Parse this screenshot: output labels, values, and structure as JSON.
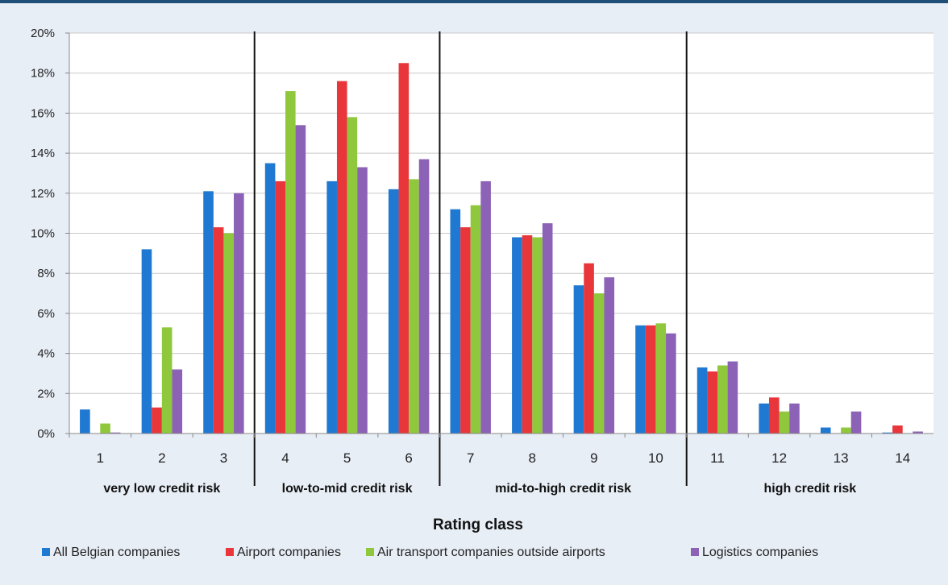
{
  "chart_data": {
    "type": "bar",
    "categories": [
      "1",
      "2",
      "3",
      "4",
      "5",
      "6",
      "7",
      "8",
      "9",
      "10",
      "11",
      "12",
      "13",
      "14"
    ],
    "series": [
      {
        "name": "All Belgian companies",
        "color": "#1f78d1",
        "values": [
          1.2,
          9.2,
          12.1,
          13.5,
          12.6,
          12.2,
          11.2,
          9.8,
          7.4,
          5.4,
          3.3,
          1.5,
          0.3,
          0.05
        ]
      },
      {
        "name": "Airport companies",
        "color": "#e8363b",
        "values": [
          0,
          1.3,
          10.3,
          12.6,
          17.6,
          18.5,
          10.3,
          9.9,
          8.5,
          5.4,
          3.1,
          1.8,
          0,
          0.4
        ]
      },
      {
        "name": "Air transport companies outside airports",
        "color": "#8fc83c",
        "values": [
          0.5,
          5.3,
          10.0,
          17.1,
          15.8,
          12.7,
          11.4,
          9.8,
          7.0,
          5.5,
          3.4,
          1.1,
          0.3,
          0
        ]
      },
      {
        "name": "Logistics companies",
        "color": "#8c62b6",
        "values": [
          0.05,
          3.2,
          12.0,
          15.4,
          13.3,
          13.7,
          12.6,
          10.5,
          7.8,
          5.0,
          3.6,
          1.5,
          1.1,
          0.1
        ]
      }
    ],
    "ylim": [
      0,
      20
    ],
    "yticks": [
      "0%",
      "2%",
      "4%",
      "6%",
      "8%",
      "10%",
      "12%",
      "14%",
      "16%",
      "18%",
      "20%"
    ],
    "ytick_values": [
      0,
      2,
      4,
      6,
      8,
      10,
      12,
      14,
      16,
      18,
      20
    ],
    "xlabel": "Rating class",
    "ylabel": "",
    "groups": [
      {
        "label": "very low credit risk",
        "start": 0,
        "end": 2
      },
      {
        "label": "low-to-mid credit risk",
        "start": 3,
        "end": 5
      },
      {
        "label": "mid-to-high credit risk",
        "start": 6,
        "end": 9
      },
      {
        "label": "high credit risk",
        "start": 10,
        "end": 13
      }
    ],
    "grid": true,
    "legend": "bottom"
  }
}
